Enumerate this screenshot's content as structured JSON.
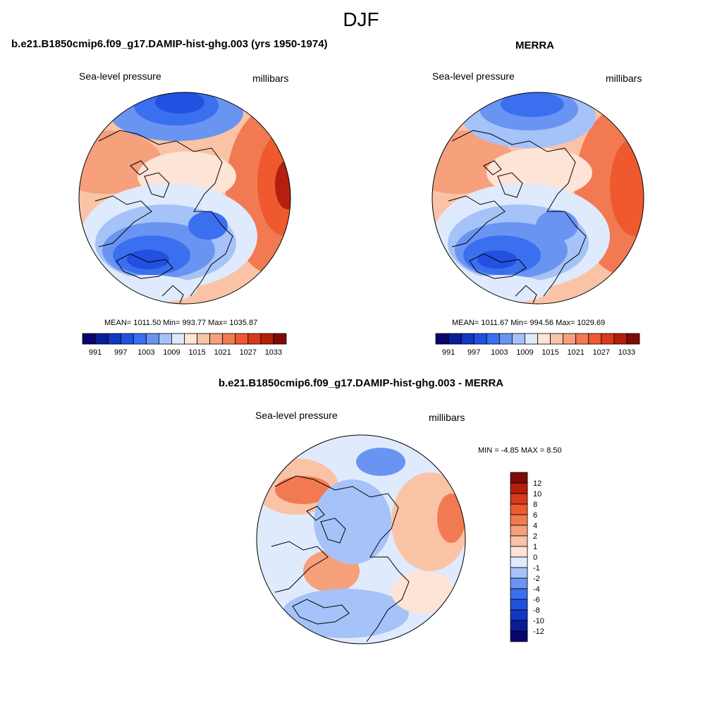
{
  "figure": {
    "season": "DJF",
    "colors": {
      "abs_scale": [
        "#08066e",
        "#0a1d99",
        "#1336c4",
        "#2250e0",
        "#3a6ff0",
        "#6a94f2",
        "#a5c3f8",
        "#dfeafc",
        "#fde4d6",
        "#fac3a6",
        "#f6a07c",
        "#f27a52",
        "#ee5a2e",
        "#d8391a",
        "#b3200d",
        "#800a04"
      ],
      "diff_scale": [
        "#08066e",
        "#0a1d99",
        "#1336c4",
        "#2250e0",
        "#3a6ff0",
        "#6a94f2",
        "#a5c3f8",
        "#dfeafc",
        "#fde4d6",
        "#fac3a6",
        "#f6a07c",
        "#f27a52",
        "#ee5a2e",
        "#d8391a",
        "#b3200d",
        "#800a04"
      ],
      "land_outline": "#000000"
    },
    "panels": [
      {
        "title": "b.e21.B1850cmip6.f09_g17.DAMIP-hist-ghg.003 (yrs 1950-1974)",
        "variable": "Sea-level pressure",
        "units": "millibars",
        "stats": "MEAN= 1011.50  Min= 993.77  Max= 1035.87",
        "colorbar_labels": [
          "991",
          "997",
          "1003",
          "1009",
          "1015",
          "1021",
          "1027",
          "1033"
        ]
      },
      {
        "title": "MERRA",
        "variable": "Sea-level pressure",
        "units": "millibars",
        "stats": "MEAN= 1011.67  Min= 994.56  Max= 1029.69",
        "colorbar_labels": [
          "991",
          "997",
          "1003",
          "1009",
          "1015",
          "1021",
          "1027",
          "1033"
        ]
      },
      {
        "title": "b.e21.B1850cmip6.f09_g17.DAMIP-hist-ghg.003 - MERRA",
        "variable": "Sea-level pressure",
        "units": "millibars",
        "stats": "MIN =  -4.85 MAX =   8.50",
        "colorbar_labels": [
          "12",
          "10",
          "8",
          "6",
          "4",
          "2",
          "1",
          "0",
          "-1",
          "-2",
          "-4",
          "-6",
          "-8",
          "-10",
          "-12"
        ]
      }
    ]
  }
}
